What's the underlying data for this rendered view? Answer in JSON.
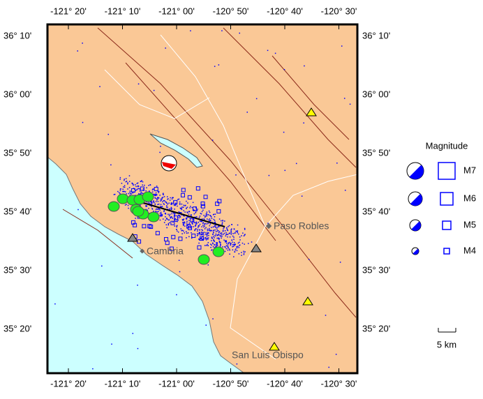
{
  "map": {
    "lon_labels": [
      "-121° 20'",
      "-121° 10'",
      "-121° 00'",
      "-120° 50'",
      "-120° 40'",
      "-120° 30'"
    ],
    "lat_labels": [
      "36° 10'",
      "36° 00'",
      "35° 50'",
      "35° 40'",
      "35° 30'",
      "35° 20'"
    ],
    "places": [
      "Paso Robles",
      "Cambria",
      "San Luis Obispo"
    ],
    "legend": {
      "title": "Magnitude",
      "labels": [
        "M7",
        "M6",
        "M5",
        "M4"
      ],
      "scale": "5 km"
    }
  }
}
